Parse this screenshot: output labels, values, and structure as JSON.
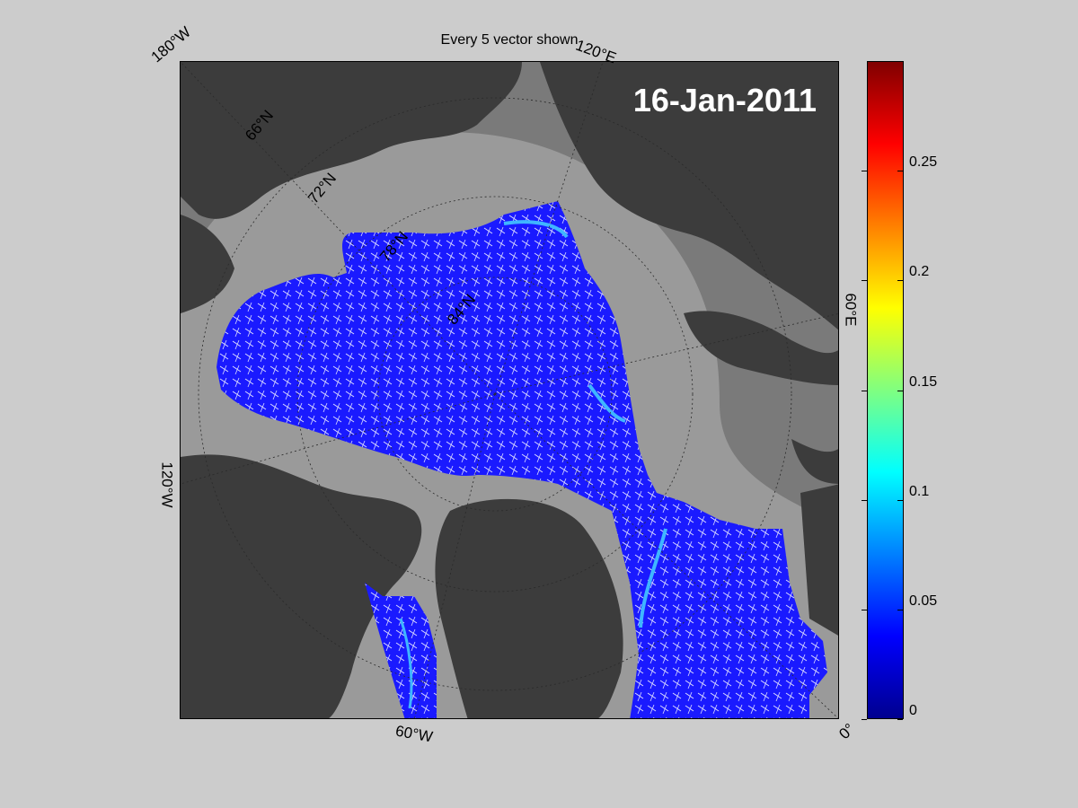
{
  "figure": {
    "title": "Every 5 vector shown",
    "date": "16-Jan-2011"
  },
  "map": {
    "longitude_labels": [
      "180°W",
      "120°E",
      "60°E",
      "0°",
      "60°W",
      "120°W"
    ],
    "latitude_labels": [
      "66°N",
      "72°N",
      "78°N",
      "84°N"
    ],
    "colors": {
      "ocean_open": "#808080",
      "land": "#3c3c3c",
      "shelf_gray": "#9a9a9a",
      "ice_field": "#1a1aff",
      "vectors": "#ffffff"
    }
  },
  "colorbar": {
    "min": 0,
    "max": 0.3,
    "colormap": "jet",
    "ticks": [
      "0",
      "0.05",
      "0.1",
      "0.15",
      "0.2",
      "0.25"
    ]
  }
}
